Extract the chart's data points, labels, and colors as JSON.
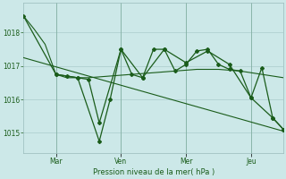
{
  "background_color": "#cce8e8",
  "grid_color": "#aacccc",
  "line_color": "#1a5c1a",
  "xlabel": "Pression niveau de la mer( hPa )",
  "ylim": [
    1014.4,
    1018.9
  ],
  "yticks": [
    1015,
    1016,
    1017,
    1018
  ],
  "xlim": [
    0,
    12
  ],
  "xtick_labels": [
    "Mar",
    "Ven",
    "Mer",
    "Jeu"
  ],
  "xtick_positions": [
    1.5,
    4.5,
    7.5,
    10.5
  ],
  "trend": {
    "x": [
      0,
      12
    ],
    "y": [
      1017.25,
      1015.05
    ]
  },
  "smooth_line": {
    "x": [
      0,
      0.5,
      1.0,
      1.5,
      2.0,
      3.0,
      4.0,
      5.0,
      6.0,
      7.0,
      8.0,
      9.0,
      10.0,
      11.0,
      12.0
    ],
    "y": [
      1018.5,
      1018.1,
      1017.65,
      1016.75,
      1016.65,
      1016.65,
      1016.7,
      1016.75,
      1016.8,
      1016.85,
      1016.9,
      1016.9,
      1016.85,
      1016.75,
      1016.65
    ]
  },
  "series_main": {
    "x": [
      0,
      1.5,
      2.5,
      3.5,
      4.0,
      4.5,
      5.0,
      5.5,
      6.0,
      6.5,
      7.0,
      7.5,
      8.0,
      8.5,
      9.0,
      9.5,
      10.0,
      10.5,
      11.0,
      11.5,
      12.0
    ],
    "y": [
      1018.5,
      1016.75,
      1016.65,
      1014.75,
      1016.0,
      1017.5,
      1016.75,
      1016.65,
      1017.5,
      1017.5,
      1016.85,
      1017.05,
      1017.45,
      1017.5,
      1017.05,
      1016.9,
      1016.85,
      1016.05,
      1016.95,
      1015.45,
      1015.1
    ]
  },
  "series_secondary": {
    "x": [
      1.5,
      2.0,
      2.5,
      3.0,
      3.5,
      4.5,
      5.5,
      6.5,
      7.5,
      8.5,
      9.5,
      10.5,
      11.5,
      12.0
    ],
    "y": [
      1016.75,
      1016.7,
      1016.65,
      1016.6,
      1015.3,
      1017.5,
      1016.65,
      1017.5,
      1017.1,
      1017.45,
      1017.05,
      1016.05,
      1015.45,
      1015.1
    ]
  }
}
